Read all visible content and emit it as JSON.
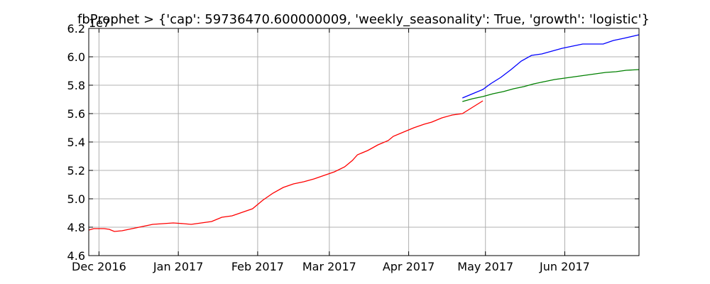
{
  "chart_data": {
    "type": "line",
    "title": "fbProphet > {'cap': 59736470.600000009, 'weekly_seasonality': True, 'growth': 'logistic'}",
    "offset_label": "1e7",
    "xlabel": "",
    "ylabel": "",
    "xlim": [
      "2016-11-27",
      "2017-06-30"
    ],
    "ylim": [
      4.6,
      6.2
    ],
    "grid": true,
    "legend": "none",
    "x_ticks": [
      {
        "date": "2016-12-01",
        "label": "Dec 2016"
      },
      {
        "date": "2017-01-01",
        "label": "Jan 2017"
      },
      {
        "date": "2017-02-01",
        "label": "Feb 2017"
      },
      {
        "date": "2017-03-01",
        "label": "Mar 2017"
      },
      {
        "date": "2017-04-01",
        "label": "Apr 2017"
      },
      {
        "date": "2017-05-01",
        "label": "May 2017"
      },
      {
        "date": "2017-06-01",
        "label": "Jun 2017"
      }
    ],
    "y_ticks": [
      "4.6",
      "4.8",
      "5.0",
      "5.2",
      "5.4",
      "5.6",
      "5.8",
      "6.0",
      "6.2"
    ],
    "series": [
      {
        "color": "#ff0000",
        "points": [
          [
            "2016-11-27",
            4.78
          ],
          [
            "2016-11-29",
            4.79
          ],
          [
            "2016-12-03",
            4.79
          ],
          [
            "2016-12-05",
            4.785
          ],
          [
            "2016-12-07",
            4.77
          ],
          [
            "2016-12-10",
            4.775
          ],
          [
            "2016-12-14",
            4.79
          ],
          [
            "2016-12-18",
            4.805
          ],
          [
            "2016-12-22",
            4.82
          ],
          [
            "2016-12-26",
            4.825
          ],
          [
            "2016-12-30",
            4.83
          ],
          [
            "2017-01-03",
            4.825
          ],
          [
            "2017-01-06",
            4.82
          ],
          [
            "2017-01-10",
            4.83
          ],
          [
            "2017-01-14",
            4.84
          ],
          [
            "2017-01-18",
            4.87
          ],
          [
            "2017-01-22",
            4.88
          ],
          [
            "2017-01-26",
            4.905
          ],
          [
            "2017-01-30",
            4.93
          ],
          [
            "2017-02-03",
            4.99
          ],
          [
            "2017-02-07",
            5.04
          ],
          [
            "2017-02-11",
            5.08
          ],
          [
            "2017-02-15",
            5.105
          ],
          [
            "2017-02-19",
            5.12
          ],
          [
            "2017-02-23",
            5.14
          ],
          [
            "2017-02-27",
            5.165
          ],
          [
            "2017-03-03",
            5.19
          ],
          [
            "2017-03-07",
            5.225
          ],
          [
            "2017-03-10",
            5.27
          ],
          [
            "2017-03-12",
            5.31
          ],
          [
            "2017-03-16",
            5.34
          ],
          [
            "2017-03-20",
            5.38
          ],
          [
            "2017-03-24",
            5.41
          ],
          [
            "2017-03-26",
            5.44
          ],
          [
            "2017-03-30",
            5.47
          ],
          [
            "2017-04-03",
            5.5
          ],
          [
            "2017-04-07",
            5.525
          ],
          [
            "2017-04-10",
            5.54
          ],
          [
            "2017-04-14",
            5.57
          ],
          [
            "2017-04-18",
            5.59
          ],
          [
            "2017-04-22",
            5.6
          ],
          [
            "2017-04-26",
            5.645
          ],
          [
            "2017-04-30",
            5.69
          ]
        ]
      },
      {
        "color": "#0000ff",
        "points": [
          [
            "2017-04-22",
            5.71
          ],
          [
            "2017-04-26",
            5.74
          ],
          [
            "2017-04-30",
            5.77
          ],
          [
            "2017-05-03",
            5.81
          ],
          [
            "2017-05-07",
            5.855
          ],
          [
            "2017-05-11",
            5.91
          ],
          [
            "2017-05-15",
            5.97
          ],
          [
            "2017-05-19",
            6.01
          ],
          [
            "2017-05-23",
            6.02
          ],
          [
            "2017-05-27",
            6.04
          ],
          [
            "2017-05-31",
            6.06
          ],
          [
            "2017-06-04",
            6.075
          ],
          [
            "2017-06-08",
            6.09
          ],
          [
            "2017-06-12",
            6.09
          ],
          [
            "2017-06-16",
            6.09
          ],
          [
            "2017-06-20",
            6.115
          ],
          [
            "2017-06-24",
            6.13
          ],
          [
            "2017-06-30",
            6.155
          ]
        ]
      },
      {
        "color": "#008000",
        "points": [
          [
            "2017-04-22",
            5.685
          ],
          [
            "2017-04-26",
            5.705
          ],
          [
            "2017-04-30",
            5.72
          ],
          [
            "2017-05-04",
            5.74
          ],
          [
            "2017-05-08",
            5.755
          ],
          [
            "2017-05-12",
            5.775
          ],
          [
            "2017-05-16",
            5.79
          ],
          [
            "2017-05-20",
            5.81
          ],
          [
            "2017-05-24",
            5.825
          ],
          [
            "2017-05-28",
            5.84
          ],
          [
            "2017-06-01",
            5.85
          ],
          [
            "2017-06-05",
            5.86
          ],
          [
            "2017-06-09",
            5.87
          ],
          [
            "2017-06-13",
            5.88
          ],
          [
            "2017-06-17",
            5.89
          ],
          [
            "2017-06-21",
            5.895
          ],
          [
            "2017-06-25",
            5.905
          ],
          [
            "2017-06-30",
            5.91
          ]
        ]
      }
    ]
  }
}
